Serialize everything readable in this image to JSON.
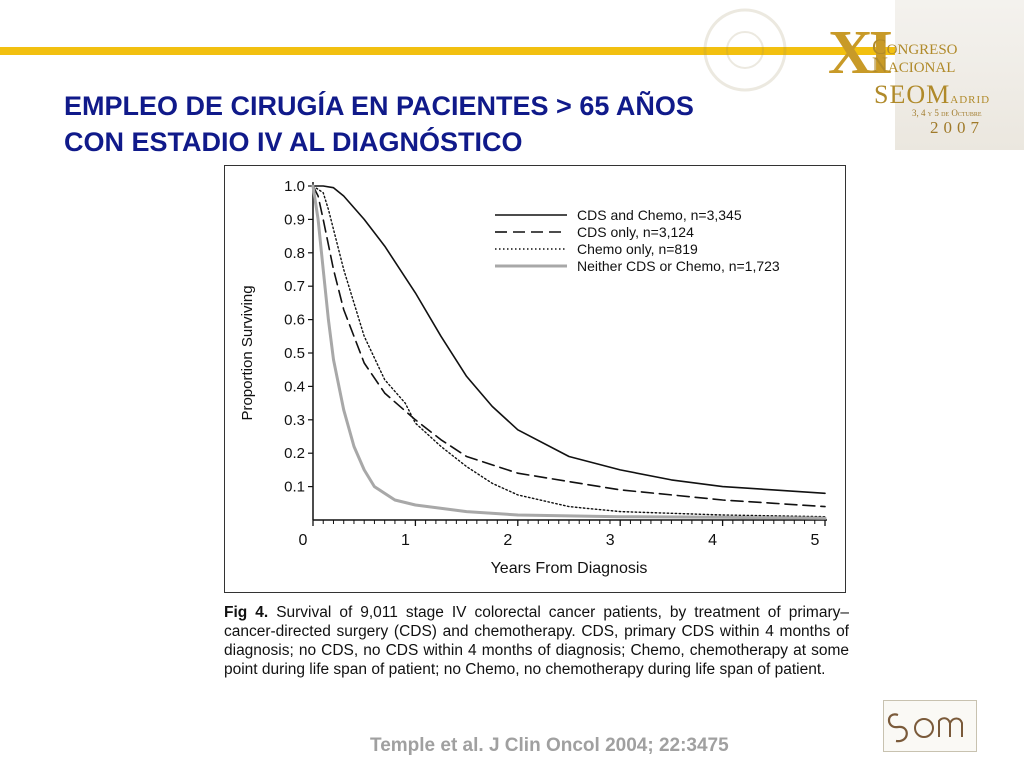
{
  "header": {
    "title_line1": "EMPLEO DE CIRUGÍA EN PACIENTES > 65 AÑOS",
    "title_line2": "CON ESTADIO IV AL DIAGNÓSTICO",
    "accent_color": "#f2c010",
    "title_color": "#101a8a"
  },
  "logo": {
    "numeral": "XI",
    "line1": "Congreso",
    "line2": "Nacional",
    "line3": "SEOM",
    "line3_suffix": "adrid",
    "dates": "3, 4 y 5 de Octubre",
    "year": "2007"
  },
  "chart_data": {
    "type": "line",
    "title": "",
    "xlabel": "Years From Diagnosis",
    "ylabel": "Proportion Surviving",
    "xlim": [
      0,
      5
    ],
    "ylim": [
      0,
      1.0
    ],
    "xticks": [
      "0",
      "1",
      "2",
      "3",
      "4",
      "5"
    ],
    "yticks": [
      "0.1",
      "0.2",
      "0.3",
      "0.4",
      "0.5",
      "0.6",
      "0.7",
      "0.8",
      "0.9",
      "1.0"
    ],
    "legend_position": "top-right",
    "grid": false,
    "series": [
      {
        "name": "CDS and Chemo, n=3,345",
        "style": "solid",
        "color": "#111111",
        "x": [
          0,
          0.1,
          0.2,
          0.3,
          0.5,
          0.7,
          1.0,
          1.25,
          1.5,
          1.75,
          2.0,
          2.5,
          3.0,
          3.5,
          4.0,
          4.5,
          5.0
        ],
        "y": [
          1.0,
          1.0,
          0.995,
          0.97,
          0.9,
          0.82,
          0.68,
          0.55,
          0.43,
          0.34,
          0.27,
          0.19,
          0.15,
          0.12,
          0.1,
          0.09,
          0.08
        ]
      },
      {
        "name": "CDS only, n=3,124",
        "style": "dashed",
        "color": "#111111",
        "x": [
          0,
          0.05,
          0.1,
          0.2,
          0.3,
          0.5,
          0.7,
          1.0,
          1.25,
          1.5,
          2.0,
          2.5,
          3.0,
          3.5,
          4.0,
          4.5,
          5.0
        ],
        "y": [
          1.0,
          0.97,
          0.9,
          0.75,
          0.63,
          0.47,
          0.38,
          0.3,
          0.24,
          0.19,
          0.14,
          0.115,
          0.09,
          0.075,
          0.06,
          0.05,
          0.04
        ]
      },
      {
        "name": "Chemo only, n=819",
        "style": "dotted",
        "color": "#111111",
        "x": [
          0,
          0.1,
          0.15,
          0.3,
          0.5,
          0.7,
          0.9,
          1.0,
          1.25,
          1.5,
          1.75,
          2.0,
          2.5,
          3.0,
          3.5,
          4.0,
          5.0
        ],
        "y": [
          1.0,
          0.98,
          0.93,
          0.75,
          0.55,
          0.42,
          0.35,
          0.29,
          0.22,
          0.16,
          0.11,
          0.075,
          0.04,
          0.025,
          0.02,
          0.015,
          0.01
        ]
      },
      {
        "name": "Neither CDS or Chemo, n=1,723",
        "style": "solid-gray",
        "color": "#a8a8a8",
        "x": [
          0,
          0.05,
          0.1,
          0.15,
          0.2,
          0.3,
          0.4,
          0.5,
          0.6,
          0.8,
          1.0,
          1.5,
          2.0,
          3.0,
          4.0,
          5.0
        ],
        "y": [
          1.0,
          0.9,
          0.75,
          0.6,
          0.48,
          0.33,
          0.22,
          0.15,
          0.1,
          0.06,
          0.045,
          0.025,
          0.015,
          0.01,
          0.008,
          0.005
        ]
      }
    ]
  },
  "caption": {
    "label": "Fig 4.",
    "text": " Survival of 9,011 stage IV colorectal cancer patients, by treatment of primary–cancer-directed surgery (CDS) and chemotherapy. CDS, primary CDS within 4 months of diagnosis; no CDS, no CDS within 4 months of diagnosis; Chemo, chemotherapy at some point during life span of patient; no Chemo, no chemotherapy during life span of patient."
  },
  "citation": "Temple et al. J Clin Oncol 2004; 22:3475"
}
